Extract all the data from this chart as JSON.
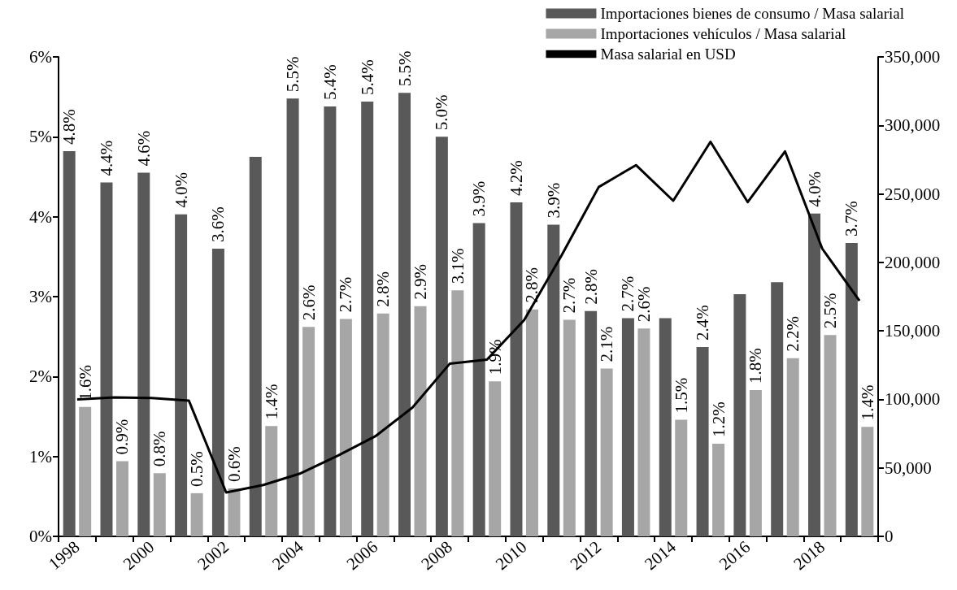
{
  "chart_data": {
    "type": "bar",
    "categories": [
      "1998",
      null,
      "2000",
      null,
      "2002",
      null,
      "2004",
      null,
      "2006",
      null,
      "2008",
      null,
      "2010",
      null,
      "2012",
      null,
      "2014",
      null,
      "2016",
      null,
      "2018",
      null
    ],
    "series": [
      {
        "name": "Importaciones bienes de consumo / Masa salarial",
        "color": "#595959",
        "values": [
          4.82,
          4.43,
          4.55,
          4.03,
          3.6,
          4.75,
          5.48,
          5.38,
          5.44,
          5.55,
          5.0,
          3.92,
          4.18,
          3.9,
          2.82,
          2.73,
          2.73,
          2.37,
          3.03,
          3.18,
          4.04,
          3.67
        ],
        "value_labels": [
          "4.8%",
          "4.4%",
          "4.6%",
          "4.0%",
          "3.6%",
          null,
          "5.5%",
          "5.4%",
          "5.4%",
          "5.5%",
          "5.0%",
          "3.9%",
          "4.2%",
          "3.9%",
          "2.8%",
          "2.7%",
          null,
          "2.4%",
          null,
          null,
          "4.0%",
          "3.7%"
        ]
      },
      {
        "name": "Importaciones vehículos / Masa salarial",
        "color": "#a6a6a6",
        "values": [
          1.62,
          0.94,
          0.79,
          0.54,
          0.6,
          1.38,
          2.62,
          2.72,
          2.79,
          2.88,
          3.08,
          1.94,
          2.84,
          2.71,
          2.1,
          2.6,
          1.46,
          1.16,
          1.83,
          2.23,
          2.52,
          1.37
        ],
        "value_labels": [
          "1.6%",
          "0.9%",
          "0.8%",
          "0.5%",
          "0.6%",
          "1.4%",
          "2.6%",
          "2.7%",
          "2.8%",
          "2.9%",
          "3.1%",
          "1.9%",
          "2.8%",
          "2.7%",
          "2.1%",
          "2.6%",
          "1.5%",
          "1.2%",
          "1.8%",
          "2.2%",
          "2.5%",
          "1.4%"
        ]
      },
      {
        "name": "Masa salarial en USD",
        "type": "line",
        "axis": "y2",
        "color": "#000000",
        "values": [
          100000,
          101500,
          101000,
          99000,
          32000,
          37500,
          46000,
          59000,
          73000,
          94000,
          126000,
          129000,
          158000,
          205000,
          255000,
          271000,
          245000,
          288000,
          244000,
          281000,
          210000,
          172000
        ]
      }
    ],
    "ylim": [
      0,
      6
    ],
    "yticks": [
      {
        "value": 0,
        "label": "0%"
      },
      {
        "value": 1,
        "label": "1%"
      },
      {
        "value": 2,
        "label": "2%"
      },
      {
        "value": 3,
        "label": "3%"
      },
      {
        "value": 4,
        "label": "4%"
      },
      {
        "value": 5,
        "label": "5%"
      },
      {
        "value": 6,
        "label": "6%"
      }
    ],
    "y2lim": [
      0,
      350000
    ],
    "y2ticks": [
      {
        "value": 0,
        "label": "0"
      },
      {
        "value": 50000,
        "label": "50,000"
      },
      {
        "value": 100000,
        "label": "100,000"
      },
      {
        "value": 150000,
        "label": "150,000"
      },
      {
        "value": 200000,
        "label": "200,000"
      },
      {
        "value": 250000,
        "label": "250,000"
      },
      {
        "value": 300000,
        "label": "300,000"
      },
      {
        "value": 350000,
        "label": "350,000"
      }
    ],
    "legend": "top right",
    "grid": false,
    "marker": "none"
  }
}
